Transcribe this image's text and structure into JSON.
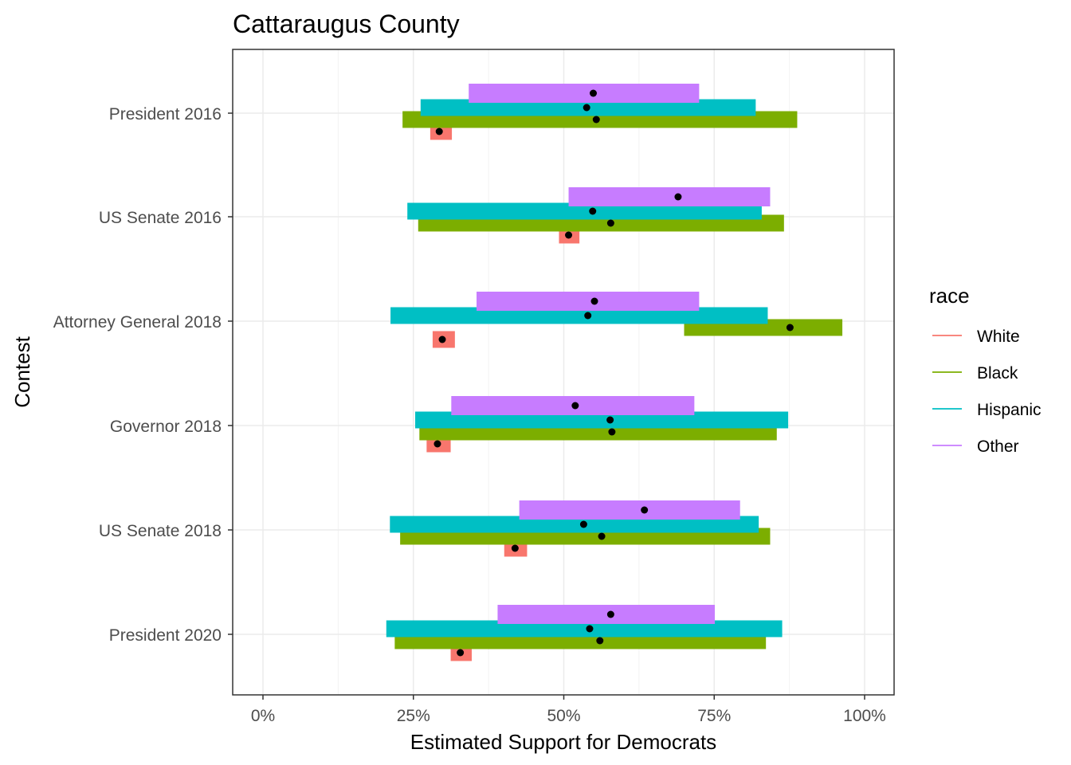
{
  "chart_data": {
    "type": "interval",
    "title": "Cattaraugus County",
    "xlabel": "Estimated Support for Democrats",
    "ylabel": "Contest",
    "xlim": [
      -0.05,
      1.05
    ],
    "x_ticks": [
      0,
      0.25,
      0.5,
      0.75,
      1.0
    ],
    "x_tick_labels": [
      "0%",
      "25%",
      "50%",
      "75%",
      "100%"
    ],
    "grid": true,
    "legend": {
      "title": "race",
      "position": "right"
    },
    "categories": [
      "President 2016",
      "US Senate 2016",
      "Attorney General 2018",
      "Governor 2018",
      "US Senate 2018",
      "President 2020"
    ],
    "series": [
      {
        "name": "White",
        "color": "#F8766D",
        "low": [
          0.278,
          0.492,
          0.282,
          0.272,
          0.401,
          0.312
        ],
        "high": [
          0.314,
          0.526,
          0.319,
          0.312,
          0.439,
          0.347
        ],
        "estimate": [
          0.293,
          0.508,
          0.298,
          0.29,
          0.419,
          0.328
        ]
      },
      {
        "name": "Black",
        "color": "#7CAE00",
        "low": [
          0.232,
          0.258,
          0.7,
          0.26,
          0.228,
          0.219
        ],
        "high": [
          0.888,
          0.866,
          0.963,
          0.854,
          0.843,
          0.836
        ],
        "estimate": [
          0.554,
          0.578,
          0.876,
          0.58,
          0.563,
          0.56
        ]
      },
      {
        "name": "Hispanic",
        "color": "#00BFC4",
        "low": [
          0.262,
          0.24,
          0.212,
          0.253,
          0.211,
          0.205
        ],
        "high": [
          0.819,
          0.829,
          0.839,
          0.873,
          0.824,
          0.863
        ],
        "estimate": [
          0.538,
          0.548,
          0.54,
          0.577,
          0.533,
          0.543
        ]
      },
      {
        "name": "Other",
        "color": "#C77CFF",
        "low": [
          0.342,
          0.508,
          0.355,
          0.313,
          0.426,
          0.39
        ],
        "high": [
          0.725,
          0.843,
          0.725,
          0.717,
          0.793,
          0.751
        ],
        "estimate": [
          0.549,
          0.69,
          0.551,
          0.519,
          0.634,
          0.578
        ]
      }
    ]
  }
}
